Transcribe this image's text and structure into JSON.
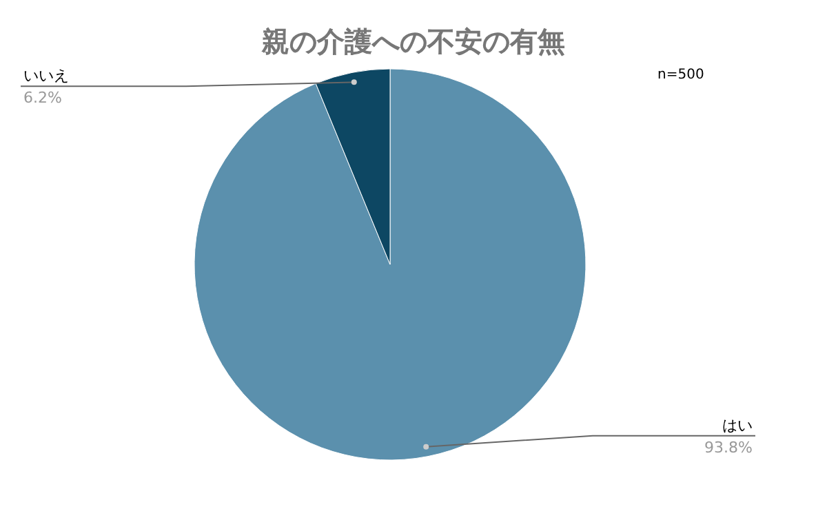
{
  "chart_data": {
    "type": "pie",
    "title": "親の介護への不安の有無",
    "categories": [
      "はい",
      "いいえ"
    ],
    "values": [
      93.8,
      6.2
    ],
    "colors": [
      "#5b90ad",
      "#0d4763"
    ],
    "value_labels": [
      "93.8%",
      "6.2%"
    ],
    "annotations": [
      "n=500"
    ]
  }
}
